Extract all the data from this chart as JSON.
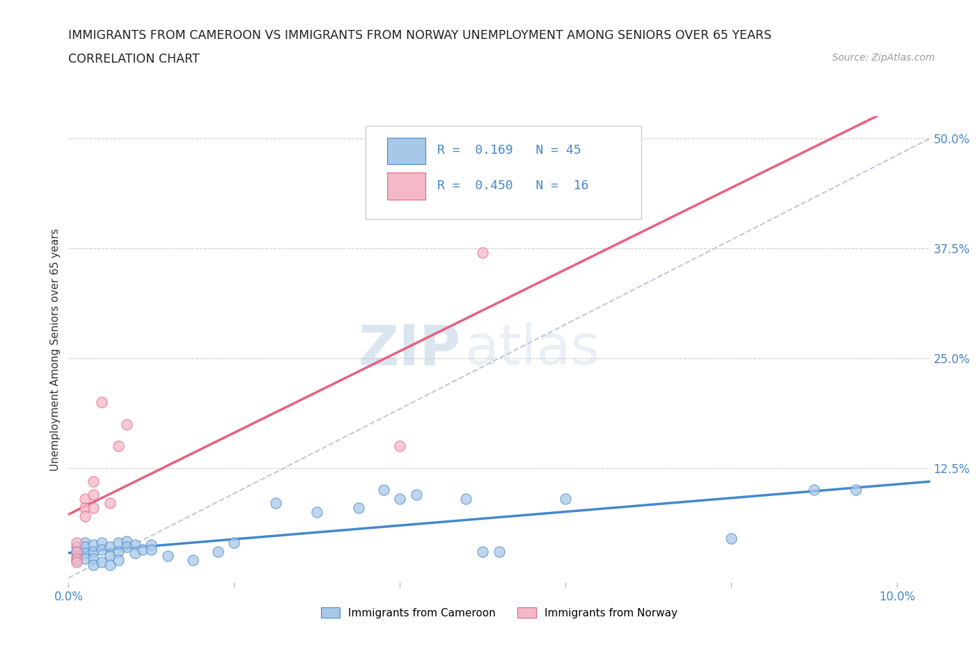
{
  "title_line1": "IMMIGRANTS FROM CAMEROON VS IMMIGRANTS FROM NORWAY UNEMPLOYMENT AMONG SENIORS OVER 65 YEARS",
  "title_line2": "CORRELATION CHART",
  "source": "Source: ZipAtlas.com",
  "ylabel": "Unemployment Among Seniors over 65 years",
  "x_ticks": [
    0.0,
    0.02,
    0.04,
    0.06,
    0.08,
    0.1
  ],
  "y_ticks": [
    0.0,
    0.125,
    0.25,
    0.375,
    0.5
  ],
  "y_tick_labels": [
    "",
    "12.5%",
    "25.0%",
    "37.5%",
    "50.0%"
  ],
  "xlim": [
    0.0,
    0.104
  ],
  "ylim": [
    -0.005,
    0.525
  ],
  "r_cameroon": 0.169,
  "n_cameroon": 45,
  "r_norway": 0.45,
  "n_norway": 16,
  "cameroon_color": "#a8c8e8",
  "norway_color": "#f4b8c8",
  "cameroon_line_color": "#4488cc",
  "norway_line_color": "#e86080",
  "trend_dashed_color": "#c0c8d8",
  "watermark_zip": "ZIP",
  "watermark_atlas": "atlas",
  "cameroon_scatter": [
    [
      0.001,
      0.035
    ],
    [
      0.001,
      0.03
    ],
    [
      0.001,
      0.025
    ],
    [
      0.001,
      0.02
    ],
    [
      0.002,
      0.04
    ],
    [
      0.002,
      0.035
    ],
    [
      0.002,
      0.028
    ],
    [
      0.002,
      0.022
    ],
    [
      0.003,
      0.038
    ],
    [
      0.003,
      0.03
    ],
    [
      0.003,
      0.022
    ],
    [
      0.003,
      0.015
    ],
    [
      0.004,
      0.04
    ],
    [
      0.004,
      0.032
    ],
    [
      0.004,
      0.018
    ],
    [
      0.005,
      0.035
    ],
    [
      0.005,
      0.025
    ],
    [
      0.005,
      0.015
    ],
    [
      0.006,
      0.04
    ],
    [
      0.006,
      0.03
    ],
    [
      0.006,
      0.02
    ],
    [
      0.007,
      0.042
    ],
    [
      0.007,
      0.035
    ],
    [
      0.008,
      0.038
    ],
    [
      0.008,
      0.028
    ],
    [
      0.009,
      0.032
    ],
    [
      0.01,
      0.038
    ],
    [
      0.01,
      0.032
    ],
    [
      0.012,
      0.025
    ],
    [
      0.015,
      0.02
    ],
    [
      0.018,
      0.03
    ],
    [
      0.02,
      0.04
    ],
    [
      0.025,
      0.085
    ],
    [
      0.03,
      0.075
    ],
    [
      0.035,
      0.08
    ],
    [
      0.038,
      0.1
    ],
    [
      0.04,
      0.09
    ],
    [
      0.042,
      0.095
    ],
    [
      0.048,
      0.09
    ],
    [
      0.05,
      0.03
    ],
    [
      0.052,
      0.03
    ],
    [
      0.06,
      0.09
    ],
    [
      0.08,
      0.045
    ],
    [
      0.09,
      0.1
    ],
    [
      0.095,
      0.1
    ]
  ],
  "norway_scatter": [
    [
      0.001,
      0.04
    ],
    [
      0.001,
      0.03
    ],
    [
      0.001,
      0.022
    ],
    [
      0.001,
      0.018
    ],
    [
      0.002,
      0.09
    ],
    [
      0.002,
      0.08
    ],
    [
      0.002,
      0.07
    ],
    [
      0.003,
      0.11
    ],
    [
      0.003,
      0.095
    ],
    [
      0.003,
      0.08
    ],
    [
      0.004,
      0.2
    ],
    [
      0.005,
      0.085
    ],
    [
      0.006,
      0.15
    ],
    [
      0.007,
      0.175
    ],
    [
      0.04,
      0.15
    ],
    [
      0.05,
      0.37
    ]
  ]
}
